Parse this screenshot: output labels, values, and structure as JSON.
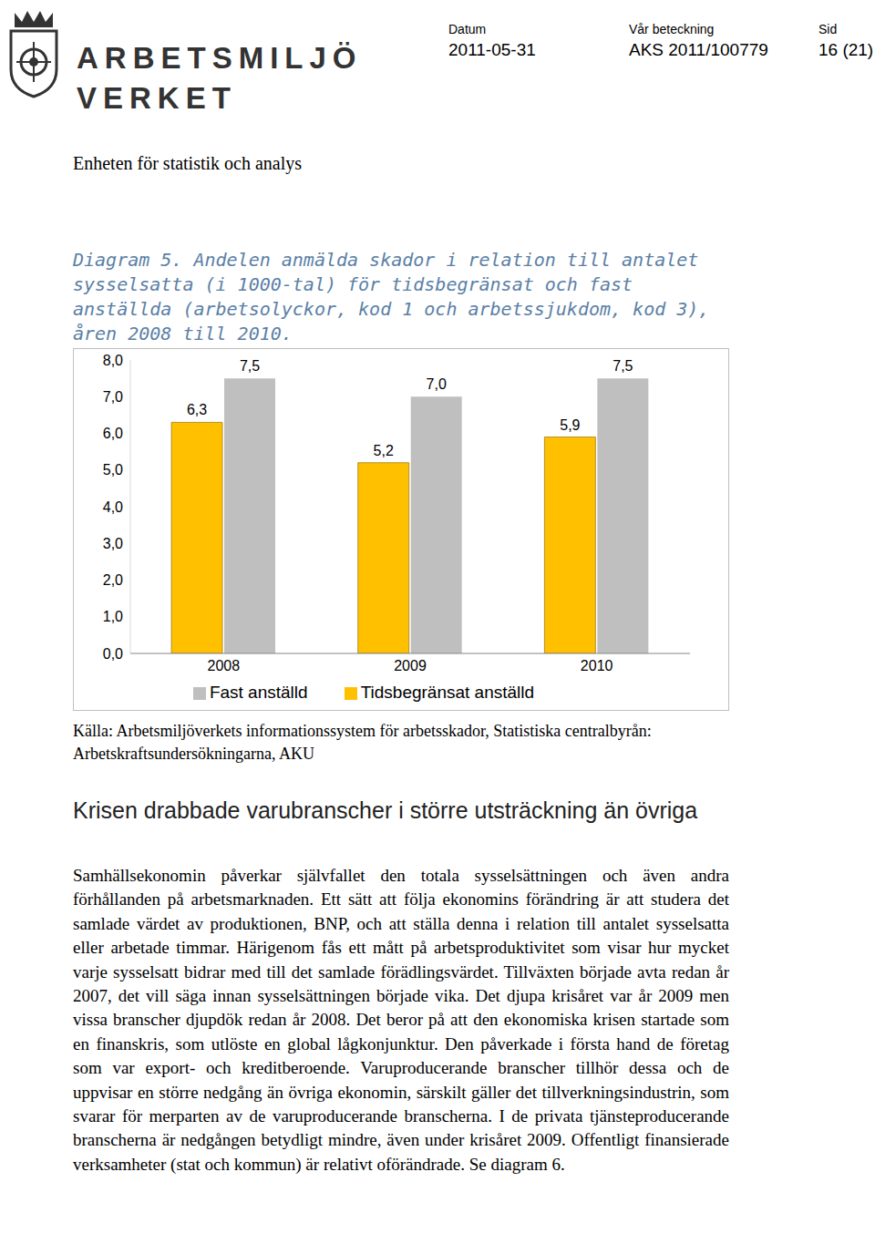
{
  "header": {
    "logo": [
      "ARBETSMILJÖ",
      "VERKET"
    ],
    "fields": [
      {
        "label": "Datum",
        "value": "2011-05-31"
      },
      {
        "label": "Vår beteckning",
        "value": "AKS 2011/100779"
      },
      {
        "label": "Sid",
        "value": "16 (21)"
      }
    ]
  },
  "unit": "Enheten för statistik och analys",
  "caption": "Diagram 5. Andelen anmälda skador i relation till antalet sysselsatta (i 1000-tal) för tidsbegränsat och fast anställda (arbetsolyckor, kod 1 och arbetssjukdom, kod 3), åren 2008 till 2010.",
  "chart_data": {
    "type": "bar",
    "categories": [
      "2008",
      "2009",
      "2010"
    ],
    "series": [
      {
        "name": "Tidsbegränsat anställd",
        "color": "#ffc000",
        "values": [
          6.3,
          5.2,
          5.9
        ],
        "value_labels": [
          "6,3",
          "5,2",
          "5,9"
        ]
      },
      {
        "name": "Fast anställd",
        "color": "#bfbfbf",
        "values": [
          7.5,
          7.0,
          7.5
        ],
        "value_labels": [
          "7,5",
          "7,0",
          "7,5"
        ]
      }
    ],
    "ylim": [
      0,
      8
    ],
    "yticks": [
      {
        "value": 0,
        "label": "0,0"
      },
      {
        "value": 1,
        "label": "1,0"
      },
      {
        "value": 2,
        "label": "2,0"
      },
      {
        "value": 3,
        "label": "3,0"
      },
      {
        "value": 4,
        "label": "4,0"
      },
      {
        "value": 5,
        "label": "5,0"
      },
      {
        "value": 6,
        "label": "6,0"
      },
      {
        "value": 7,
        "label": "7,0"
      },
      {
        "value": 8,
        "label": "8,0"
      }
    ],
    "grid": false,
    "legend": "bottom",
    "data_labels": true
  },
  "source": "Källa: Arbetsmiljöverkets informationssystem för arbetsskador, Statistiska centralbyrån: Arbetskraftsundersökningarna, AKU",
  "heading": "Krisen drabbade varubranscher i större utsträckning än övriga",
  "paragraph": "Samhällsekonomin påverkar självfallet den totala sysselsättningen och även andra förhållanden på arbetsmarknaden. Ett sätt att följa ekonomins förändring är att studera det samlade värdet av produktionen, BNP, och att ställa denna i relation till antalet sysselsatta eller arbetade timmar. Härigenom fås ett mått på arbetsproduktivitet som visar hur mycket varje sysselsatt bidrar med till det samlade förädlingsvärdet. Tillväxten började avta redan år 2007, det vill säga innan sysselsättningen började vika. Det djupa krisåret var år 2009 men vissa branscher djupdök redan år 2008. Det beror på att den ekonomiska krisen startade som en finanskris, som utlöste en global lågkonjunktur. Den påverkade i första hand de företag som var export- och kreditberoende. Varuproducerande branscher tillhör dessa och de uppvisar en större nedgång än övriga ekonomin, särskilt gäller det tillverkningsindustrin, som svarar för merparten av de varuproducerande branscherna. I de privata tjänsteproducerande branscherna är nedgången betydligt mindre, även under krisåret 2009. Offentligt finansierade verksamheter (stat och kommun) är relativt oförändrade. Se diagram 6."
}
